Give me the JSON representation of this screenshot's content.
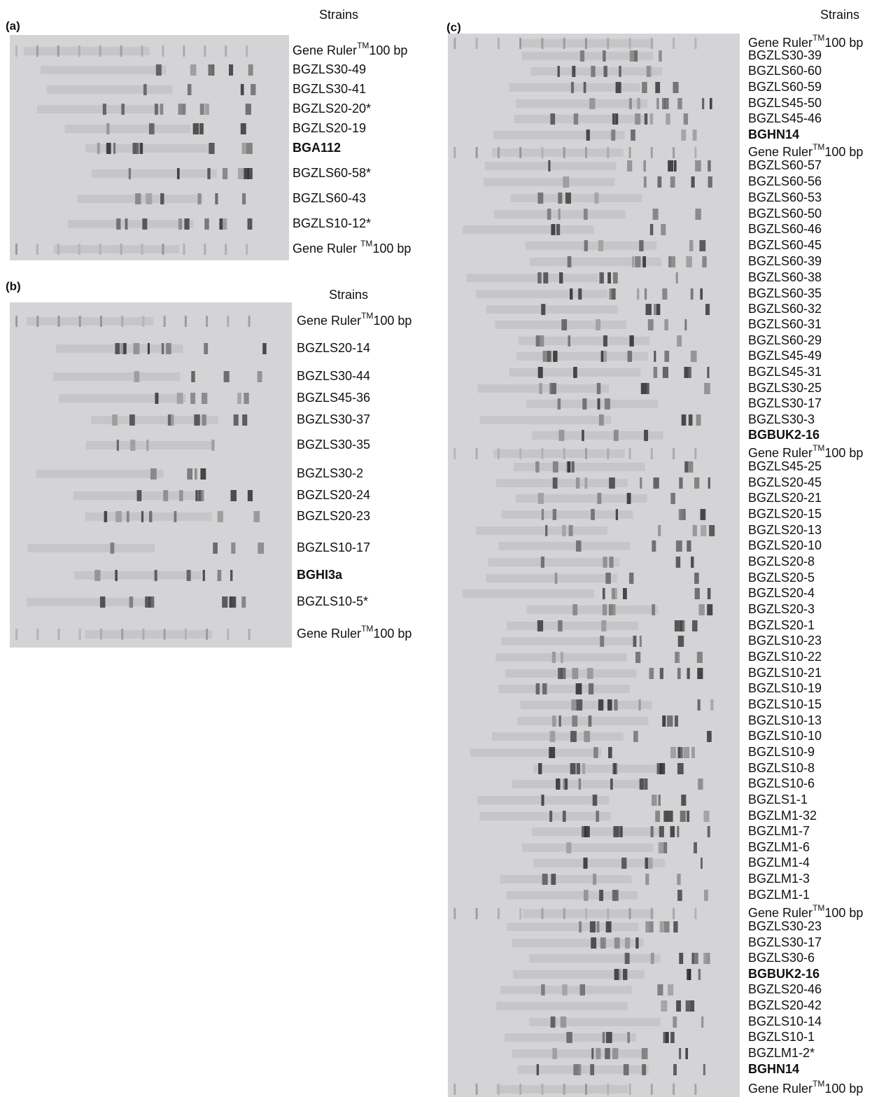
{
  "panels": [
    {
      "label": "(a)",
      "header": "Strains",
      "lanes": [
        {
          "label": "Gene Ruler",
          "sup": "TM",
          "suffix": "100 bp"
        },
        {
          "label": "BGZLS30-49"
        },
        {
          "label": "BGZLS30-41"
        },
        {
          "label": "BGZLS20-20*"
        },
        {
          "label": "BGZLS20-19"
        },
        {
          "label": "BGA112",
          "bold": true
        },
        {
          "label": "BGZLS60-58*"
        },
        {
          "label": "BGZLS60-43"
        },
        {
          "label": "BGZLS10-12*"
        },
        {
          "label": "Gene Ruler ",
          "sup": "TM",
          "suffix": "100 bp"
        }
      ]
    },
    {
      "label": "(b)",
      "header": "Strains",
      "lanes": [
        {
          "label": "Gene Ruler",
          "sup": "TM",
          "suffix": "100 bp"
        },
        {
          "label": "BGZLS20-14"
        },
        {
          "label": "BGZLS30-44"
        },
        {
          "label": "BGZLS45-36"
        },
        {
          "label": "BGZLS30-37"
        },
        {
          "label": "BGZLS30-35"
        },
        {
          "label": "BGZLS30-2"
        },
        {
          "label": "BGZLS20-24"
        },
        {
          "label": "BGZLS20-23"
        },
        {
          "label": "BGZLS10-17"
        },
        {
          "label": "BGHI3a",
          "bold": true
        },
        {
          "label": "BGZLS10-5*"
        },
        {
          "label": "Gene Ruler",
          "sup": "TM",
          "suffix": "100 bp"
        }
      ]
    },
    {
      "label": "(c)",
      "header": "Strains",
      "lanes": [
        {
          "label": "Gene Ruler",
          "sup": "TM",
          "suffix": "100 bp"
        },
        {
          "label": "BGZLS30-39"
        },
        {
          "label": "BGZLS60-60"
        },
        {
          "label": "BGZLS60-59"
        },
        {
          "label": "BGZLS45-50"
        },
        {
          "label": "BGZLS45-46"
        },
        {
          "label": "BGHN14",
          "bold": true
        },
        {
          "label": "Gene Ruler",
          "sup": "TM",
          "suffix": "100 bp"
        },
        {
          "label": "BGZLS60-57"
        },
        {
          "label": "BGZLS60-56"
        },
        {
          "label": "BGZLS60-53"
        },
        {
          "label": "BGZLS60-50"
        },
        {
          "label": "BGZLS60-46"
        },
        {
          "label": "BGZLS60-45"
        },
        {
          "label": "BGZLS60-39"
        },
        {
          "label": "BGZLS60-38"
        },
        {
          "label": "BGZLS60-35"
        },
        {
          "label": "BGZLS60-32"
        },
        {
          "label": "BGZLS60-31"
        },
        {
          "label": "BGZLS60-29"
        },
        {
          "label": "BGZLS45-49"
        },
        {
          "label": "BGZLS45-31"
        },
        {
          "label": "BGZLS30-25"
        },
        {
          "label": "BGZLS30-17"
        },
        {
          "label": "BGZLS30-3"
        },
        {
          "label": "BGBUK2-16",
          "bold": true
        },
        {
          "label": "Gene Ruler",
          "sup": "TM",
          "suffix": "100 bp"
        },
        {
          "label": "BGZLS45-25"
        },
        {
          "label": "BGZLS20-45"
        },
        {
          "label": "BGZLS20-21"
        },
        {
          "label": "BGZLS20-15"
        },
        {
          "label": "BGZLS20-13"
        },
        {
          "label": "BGZLS20-10"
        },
        {
          "label": "BGZLS20-8"
        },
        {
          "label": "BGZLS20-5"
        },
        {
          "label": "BGZLS20-4"
        },
        {
          "label": "BGZLS20-3"
        },
        {
          "label": "BGZLS20-1"
        },
        {
          "label": "BGZLS10-23"
        },
        {
          "label": "BGZLS10-22"
        },
        {
          "label": "BGZLS10-21"
        },
        {
          "label": "BGZLS10-19"
        },
        {
          "label": "BGZLS10-15"
        },
        {
          "label": "BGZLS10-13"
        },
        {
          "label": "BGZLS10-10"
        },
        {
          "label": "BGZLS10-9"
        },
        {
          "label": "BGZLS10-8"
        },
        {
          "label": "BGZLS10-6"
        },
        {
          "label": "BGZLS1-1"
        },
        {
          "label": "BGZLM1-32"
        },
        {
          "label": "BGZLM1-7"
        },
        {
          "label": "BGZLM1-6"
        },
        {
          "label": "BGZLM1-4"
        },
        {
          "label": "BGZLM1-3"
        },
        {
          "label": "BGZLM1-1"
        },
        {
          "label": "Gene Ruler",
          "sup": "TM",
          "suffix": "100 bp"
        },
        {
          "label": "BGZLS30-23"
        },
        {
          "label": "BGZLS30-17"
        },
        {
          "label": "BGZLS30-6"
        },
        {
          "label": "BGBUK2-16",
          "bold": true
        },
        {
          "label": "BGZLS20-46"
        },
        {
          "label": "BGZLS20-42"
        },
        {
          "label": "BGZLS10-14"
        },
        {
          "label": "BGZLS10-1"
        },
        {
          "label": "BGZLM1-2*"
        },
        {
          "label": "BGHN14",
          "bold": true
        },
        {
          "label": "Gene Ruler",
          "sup": "TM",
          "suffix": "100 bp"
        }
      ]
    }
  ]
}
